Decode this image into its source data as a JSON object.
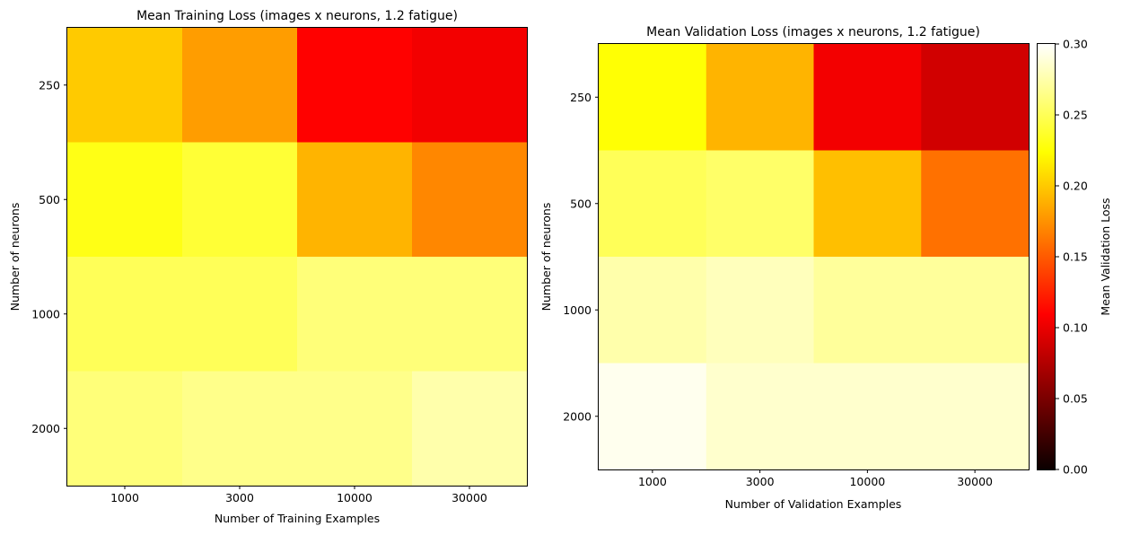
{
  "chart_data": [
    {
      "type": "heatmap",
      "title": "Mean Training Loss (images x neurons, 1.2 fatigue)",
      "xlabel": "Number of Training Examples",
      "ylabel": "Number of neurons",
      "x_categories": [
        "1000",
        "3000",
        "10000",
        "30000"
      ],
      "y_categories": [
        "250",
        "500",
        "1000",
        "2000"
      ],
      "values": [
        [
          0.2,
          0.18,
          0.11,
          0.1
        ],
        [
          0.23,
          0.24,
          0.19,
          0.17
        ],
        [
          0.25,
          0.25,
          0.26,
          0.26
        ],
        [
          0.26,
          0.265,
          0.265,
          0.275
        ]
      ],
      "colormap": "hot",
      "vmin": 0.0,
      "vmax": 0.3
    },
    {
      "type": "heatmap",
      "title": "Mean Validation Loss (images x neurons, 1.2 fatigue)",
      "xlabel": "Number of Validation Examples",
      "ylabel": "Number of neurons",
      "x_categories": [
        "1000",
        "3000",
        "10000",
        "30000"
      ],
      "y_categories": [
        "250",
        "500",
        "1000",
        "2000"
      ],
      "values": [
        [
          0.225,
          0.19,
          0.1,
          0.085
        ],
        [
          0.25,
          0.255,
          0.195,
          0.16
        ],
        [
          0.275,
          0.28,
          0.27,
          0.27
        ],
        [
          0.295,
          0.285,
          0.285,
          0.285
        ]
      ],
      "colormap": "hot",
      "vmin": 0.0,
      "vmax": 0.3,
      "colorbar": {
        "label": "Mean Validation Loss",
        "ticks": [
          "0.00",
          "0.05",
          "0.10",
          "0.15",
          "0.20",
          "0.25",
          "0.30"
        ]
      }
    }
  ]
}
